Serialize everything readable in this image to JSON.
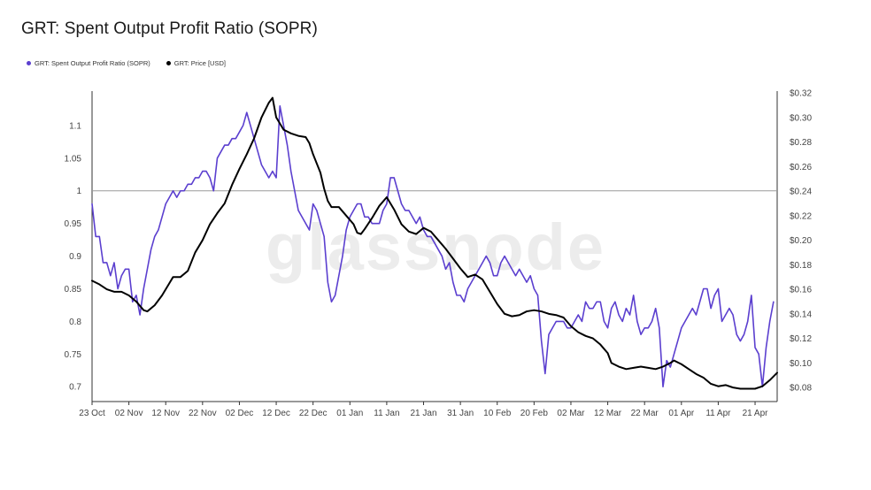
{
  "title": "GRT: Spent Output Profit Ratio (SOPR)",
  "legend": [
    {
      "label": "GRT: Spent Output Profit Ratio (SOPR)",
      "color": "#5b3fcf"
    },
    {
      "label": "GRT: Price [USD]",
      "color": "#000000"
    }
  ],
  "watermark": "glassnode",
  "chart_data": {
    "type": "line",
    "x_labels": [
      "23 Oct",
      "02 Nov",
      "12 Nov",
      "22 Nov",
      "02 Dec",
      "12 Dec",
      "22 Dec",
      "01 Jan",
      "11 Jan",
      "21 Jan",
      "31 Jan",
      "10 Feb",
      "20 Feb",
      "02 Mar",
      "12 Mar",
      "22 Mar",
      "01 Apr",
      "11 Apr",
      "21 Apr"
    ],
    "x_range_days": [
      0,
      186
    ],
    "left_axis": {
      "ticks": [
        "1.1",
        "1.05",
        "1",
        "0.95",
        "0.9",
        "0.85",
        "0.8",
        "0.75",
        "0.7"
      ],
      "range": [
        0.68,
        1.15
      ]
    },
    "right_axis": {
      "ticks": [
        "$0.32",
        "$0.30",
        "$0.28",
        "$0.26",
        "$0.24",
        "$0.22",
        "$0.20",
        "$0.18",
        "$0.16",
        "$0.14",
        "$0.12",
        "$0.10",
        "$0.08"
      ],
      "range": [
        0.07,
        0.32
      ]
    },
    "reference_line": {
      "axis": "left",
      "value": 1
    },
    "series": [
      {
        "name": "GRT: Spent Output Profit Ratio (SOPR)",
        "axis": "left",
        "color": "#5b3fcf",
        "points": [
          [
            0,
            0.98
          ],
          [
            1,
            0.93
          ],
          [
            2,
            0.93
          ],
          [
            3,
            0.89
          ],
          [
            4,
            0.89
          ],
          [
            5,
            0.87
          ],
          [
            6,
            0.89
          ],
          [
            7,
            0.85
          ],
          [
            8,
            0.87
          ],
          [
            9,
            0.88
          ],
          [
            10,
            0.88
          ],
          [
            11,
            0.83
          ],
          [
            12,
            0.84
          ],
          [
            13,
            0.81
          ],
          [
            14,
            0.85
          ],
          [
            15,
            0.88
          ],
          [
            16,
            0.91
          ],
          [
            17,
            0.93
          ],
          [
            18,
            0.94
          ],
          [
            19,
            0.96
          ],
          [
            20,
            0.98
          ],
          [
            21,
            0.99
          ],
          [
            22,
            1.0
          ],
          [
            23,
            0.99
          ],
          [
            24,
            1.0
          ],
          [
            25,
            1.0
          ],
          [
            26,
            1.01
          ],
          [
            27,
            1.01
          ],
          [
            28,
            1.02
          ],
          [
            29,
            1.02
          ],
          [
            30,
            1.03
          ],
          [
            31,
            1.03
          ],
          [
            32,
            1.02
          ],
          [
            33,
            1.0
          ],
          [
            34,
            1.05
          ],
          [
            35,
            1.06
          ],
          [
            36,
            1.07
          ],
          [
            37,
            1.07
          ],
          [
            38,
            1.08
          ],
          [
            39,
            1.08
          ],
          [
            40,
            1.09
          ],
          [
            41,
            1.1
          ],
          [
            42,
            1.12
          ],
          [
            43,
            1.1
          ],
          [
            44,
            1.08
          ],
          [
            45,
            1.06
          ],
          [
            46,
            1.04
          ],
          [
            47,
            1.03
          ],
          [
            48,
            1.02
          ],
          [
            49,
            1.03
          ],
          [
            50,
            1.02
          ],
          [
            51,
            1.13
          ],
          [
            52,
            1.1
          ],
          [
            53,
            1.07
          ],
          [
            54,
            1.03
          ],
          [
            55,
            1.0
          ],
          [
            56,
            0.97
          ],
          [
            57,
            0.96
          ],
          [
            58,
            0.95
          ],
          [
            59,
            0.94
          ],
          [
            60,
            0.98
          ],
          [
            61,
            0.97
          ],
          [
            62,
            0.95
          ],
          [
            63,
            0.93
          ],
          [
            64,
            0.86
          ],
          [
            65,
            0.83
          ],
          [
            66,
            0.84
          ],
          [
            67,
            0.87
          ],
          [
            68,
            0.9
          ],
          [
            69,
            0.94
          ],
          [
            70,
            0.96
          ],
          [
            71,
            0.97
          ],
          [
            72,
            0.98
          ],
          [
            73,
            0.98
          ],
          [
            74,
            0.96
          ],
          [
            75,
            0.96
          ],
          [
            76,
            0.95
          ],
          [
            77,
            0.95
          ],
          [
            78,
            0.95
          ],
          [
            79,
            0.97
          ],
          [
            80,
            0.98
          ],
          [
            81,
            1.02
          ],
          [
            82,
            1.02
          ],
          [
            83,
            1.0
          ],
          [
            84,
            0.98
          ],
          [
            85,
            0.97
          ],
          [
            86,
            0.97
          ],
          [
            87,
            0.96
          ],
          [
            88,
            0.95
          ],
          [
            89,
            0.96
          ],
          [
            90,
            0.94
          ],
          [
            91,
            0.93
          ],
          [
            92,
            0.93
          ],
          [
            93,
            0.92
          ],
          [
            94,
            0.91
          ],
          [
            95,
            0.9
          ],
          [
            96,
            0.88
          ],
          [
            97,
            0.89
          ],
          [
            98,
            0.86
          ],
          [
            99,
            0.84
          ],
          [
            100,
            0.84
          ],
          [
            101,
            0.83
          ],
          [
            102,
            0.85
          ],
          [
            103,
            0.86
          ],
          [
            104,
            0.87
          ],
          [
            105,
            0.88
          ],
          [
            106,
            0.89
          ],
          [
            107,
            0.9
          ],
          [
            108,
            0.89
          ],
          [
            109,
            0.87
          ],
          [
            110,
            0.87
          ],
          [
            111,
            0.89
          ],
          [
            112,
            0.9
          ],
          [
            113,
            0.89
          ],
          [
            114,
            0.88
          ],
          [
            115,
            0.87
          ],
          [
            116,
            0.88
          ],
          [
            117,
            0.87
          ],
          [
            118,
            0.86
          ],
          [
            119,
            0.87
          ],
          [
            120,
            0.85
          ],
          [
            121,
            0.84
          ],
          [
            122,
            0.77
          ],
          [
            123,
            0.72
          ],
          [
            124,
            0.78
          ],
          [
            125,
            0.79
          ],
          [
            126,
            0.8
          ],
          [
            127,
            0.8
          ],
          [
            128,
            0.8
          ],
          [
            129,
            0.79
          ],
          [
            130,
            0.79
          ],
          [
            131,
            0.8
          ],
          [
            132,
            0.81
          ],
          [
            133,
            0.8
          ],
          [
            134,
            0.83
          ],
          [
            135,
            0.82
          ],
          [
            136,
            0.82
          ],
          [
            137,
            0.83
          ],
          [
            138,
            0.83
          ],
          [
            139,
            0.8
          ],
          [
            140,
            0.79
          ],
          [
            141,
            0.82
          ],
          [
            142,
            0.83
          ],
          [
            143,
            0.81
          ],
          [
            144,
            0.8
          ],
          [
            145,
            0.82
          ],
          [
            146,
            0.81
          ],
          [
            147,
            0.84
          ],
          [
            148,
            0.8
          ],
          [
            149,
            0.78
          ],
          [
            150,
            0.79
          ],
          [
            151,
            0.79
          ],
          [
            152,
            0.8
          ],
          [
            153,
            0.82
          ],
          [
            154,
            0.79
          ],
          [
            155,
            0.7
          ],
          [
            156,
            0.74
          ],
          [
            157,
            0.73
          ],
          [
            158,
            0.75
          ],
          [
            159,
            0.77
          ],
          [
            160,
            0.79
          ],
          [
            161,
            0.8
          ],
          [
            162,
            0.81
          ],
          [
            163,
            0.82
          ],
          [
            164,
            0.81
          ],
          [
            165,
            0.83
          ],
          [
            166,
            0.85
          ],
          [
            167,
            0.85
          ],
          [
            168,
            0.82
          ],
          [
            169,
            0.84
          ],
          [
            170,
            0.85
          ],
          [
            171,
            0.8
          ],
          [
            172,
            0.81
          ],
          [
            173,
            0.82
          ],
          [
            174,
            0.81
          ],
          [
            175,
            0.78
          ],
          [
            176,
            0.77
          ],
          [
            177,
            0.78
          ],
          [
            178,
            0.8
          ],
          [
            179,
            0.84
          ],
          [
            180,
            0.76
          ],
          [
            181,
            0.75
          ],
          [
            182,
            0.7
          ],
          [
            183,
            0.76
          ],
          [
            184,
            0.8
          ],
          [
            185,
            0.83
          ]
        ]
      },
      {
        "name": "GRT: Price [USD]",
        "axis": "right",
        "color": "#000000",
        "points": [
          [
            0,
            0.167
          ],
          [
            2,
            0.164
          ],
          [
            4,
            0.16
          ],
          [
            6,
            0.158
          ],
          [
            8,
            0.158
          ],
          [
            10,
            0.155
          ],
          [
            12,
            0.15
          ],
          [
            14,
            0.143
          ],
          [
            15,
            0.142
          ],
          [
            17,
            0.147
          ],
          [
            19,
            0.155
          ],
          [
            21,
            0.165
          ],
          [
            22,
            0.17
          ],
          [
            24,
            0.17
          ],
          [
            26,
            0.175
          ],
          [
            28,
            0.19
          ],
          [
            30,
            0.2
          ],
          [
            32,
            0.213
          ],
          [
            34,
            0.222
          ],
          [
            36,
            0.23
          ],
          [
            38,
            0.245
          ],
          [
            40,
            0.258
          ],
          [
            42,
            0.27
          ],
          [
            44,
            0.283
          ],
          [
            46,
            0.3
          ],
          [
            48,
            0.312
          ],
          [
            49,
            0.316
          ],
          [
            50,
            0.3
          ],
          [
            52,
            0.29
          ],
          [
            54,
            0.287
          ],
          [
            56,
            0.285
          ],
          [
            58,
            0.284
          ],
          [
            59,
            0.279
          ],
          [
            60,
            0.27
          ],
          [
            62,
            0.255
          ],
          [
            63,
            0.242
          ],
          [
            64,
            0.232
          ],
          [
            65,
            0.227
          ],
          [
            67,
            0.227
          ],
          [
            69,
            0.22
          ],
          [
            71,
            0.213
          ],
          [
            72,
            0.206
          ],
          [
            73,
            0.205
          ],
          [
            74,
            0.209
          ],
          [
            76,
            0.218
          ],
          [
            78,
            0.228
          ],
          [
            80,
            0.235
          ],
          [
            82,
            0.225
          ],
          [
            84,
            0.213
          ],
          [
            86,
            0.207
          ],
          [
            88,
            0.205
          ],
          [
            90,
            0.21
          ],
          [
            92,
            0.207
          ],
          [
            94,
            0.2
          ],
          [
            96,
            0.193
          ],
          [
            98,
            0.185
          ],
          [
            100,
            0.177
          ],
          [
            102,
            0.17
          ],
          [
            104,
            0.172
          ],
          [
            106,
            0.168
          ],
          [
            108,
            0.158
          ],
          [
            110,
            0.148
          ],
          [
            112,
            0.14
          ],
          [
            114,
            0.138
          ],
          [
            116,
            0.139
          ],
          [
            118,
            0.142
          ],
          [
            120,
            0.143
          ],
          [
            122,
            0.142
          ],
          [
            124,
            0.14
          ],
          [
            126,
            0.139
          ],
          [
            128,
            0.137
          ],
          [
            130,
            0.13
          ],
          [
            132,
            0.125
          ],
          [
            134,
            0.122
          ],
          [
            136,
            0.12
          ],
          [
            138,
            0.115
          ],
          [
            140,
            0.108
          ],
          [
            141,
            0.1
          ],
          [
            143,
            0.097
          ],
          [
            145,
            0.095
          ],
          [
            147,
            0.096
          ],
          [
            149,
            0.097
          ],
          [
            151,
            0.096
          ],
          [
            153,
            0.095
          ],
          [
            155,
            0.097
          ],
          [
            157,
            0.1
          ],
          [
            158,
            0.102
          ],
          [
            160,
            0.099
          ],
          [
            162,
            0.095
          ],
          [
            164,
            0.091
          ],
          [
            166,
            0.088
          ],
          [
            168,
            0.083
          ],
          [
            170,
            0.081
          ],
          [
            172,
            0.082
          ],
          [
            174,
            0.08
          ],
          [
            176,
            0.079
          ],
          [
            178,
            0.079
          ],
          [
            180,
            0.079
          ],
          [
            182,
            0.081
          ],
          [
            184,
            0.086
          ],
          [
            186,
            0.092
          ]
        ]
      }
    ]
  }
}
